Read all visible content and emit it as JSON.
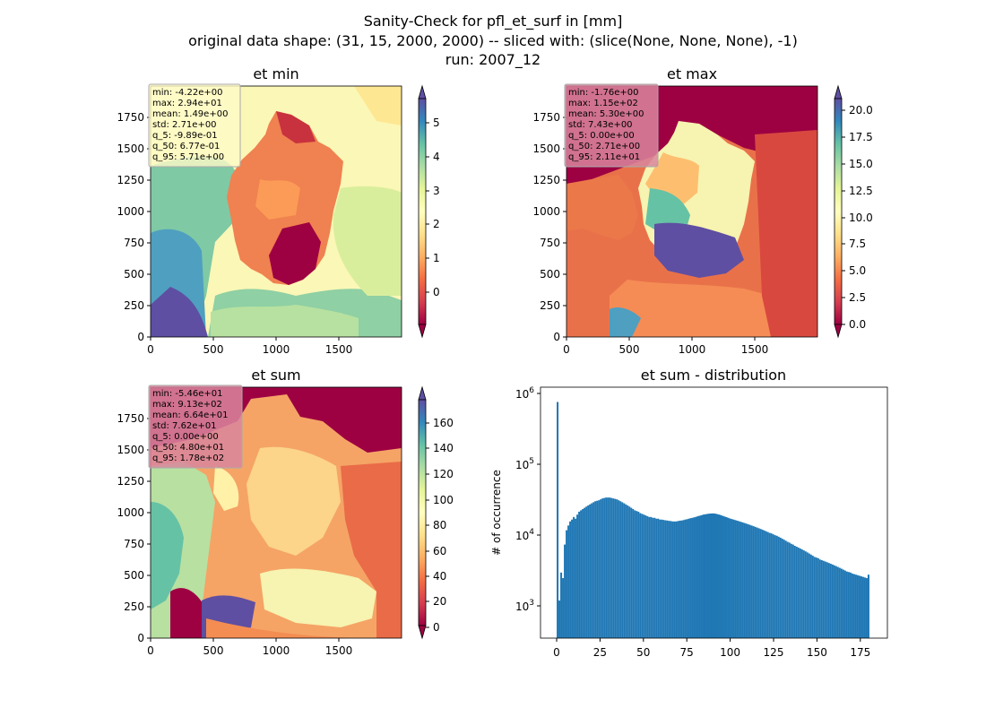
{
  "figure": {
    "title_lines": [
      "Sanity-Check for pfl_et_surf in [mm]",
      "original data shape: (31, 15, 2000, 2000) -- sliced with: (slice(None, None, None), -1)",
      "run: 2007_12"
    ]
  },
  "chart_data": [
    {
      "type": "heatmap",
      "title": "et min",
      "xlim": [
        0,
        2000
      ],
      "ylim": [
        0,
        2000
      ],
      "x_ticks": [
        "0",
        "500",
        "1000",
        "1500"
      ],
      "y_ticks": [
        "0",
        "250",
        "500",
        "750",
        "1000",
        "1250",
        "1500",
        "1750"
      ],
      "colormap": "Spectral",
      "colorbar": {
        "range": [
          -0.99,
          5.71
        ],
        "ticks": [
          "0",
          "1",
          "2",
          "3",
          "4",
          "5"
        ],
        "extend": "both"
      },
      "stats": [
        "min: -4.22e+00",
        "max: 2.94e+01",
        "mean: 1.49e+00",
        "std: 2.71e+00",
        "q_5: -9.89e-01",
        "q_50: 6.77e-01",
        "q_95: 5.71e+00"
      ],
      "stats_box_color": "#fffac8"
    },
    {
      "type": "heatmap",
      "title": "et max",
      "xlim": [
        0,
        2000
      ],
      "ylim": [
        0,
        2000
      ],
      "x_ticks": [
        "0",
        "500",
        "1000",
        "1500"
      ],
      "y_ticks": [
        "0",
        "250",
        "500",
        "750",
        "1000",
        "1250",
        "1500",
        "1750"
      ],
      "colormap": "Spectral",
      "colorbar": {
        "range": [
          0,
          21.1
        ],
        "ticks": [
          "0.0",
          "2.5",
          "5.0",
          "7.5",
          "10.0",
          "12.5",
          "15.0",
          "17.5",
          "20.0"
        ],
        "extend": "both"
      },
      "stats": [
        "min: -1.76e+00",
        "max: 1.15e+02",
        "mean: 5.30e+00",
        "std: 7.43e+00",
        "q_5: 0.00e+00",
        "q_50: 2.71e+00",
        "q_95: 2.11e+01"
      ],
      "stats_box_color": "#d8869e"
    },
    {
      "type": "heatmap",
      "title": "et sum",
      "xlim": [
        0,
        2000
      ],
      "ylim": [
        0,
        2000
      ],
      "x_ticks": [
        "0",
        "500",
        "1000",
        "1500"
      ],
      "y_ticks": [
        "0",
        "250",
        "500",
        "750",
        "1000",
        "1250",
        "1500",
        "1750"
      ],
      "colormap": "Spectral",
      "colorbar": {
        "range": [
          -4,
          178
        ],
        "ticks": [
          "0",
          "20",
          "40",
          "60",
          "80",
          "100",
          "120",
          "140",
          "160"
        ],
        "extend": "both"
      },
      "stats": [
        "min: -5.46e+01",
        "max: 9.13e+02",
        "mean: 6.64e+01",
        "std: 7.62e+01",
        "q_5: 0.00e+00",
        "q_50: 4.80e+01",
        "q_95: 1.78e+02"
      ],
      "stats_box_color": "#d8869e"
    },
    {
      "type": "bar",
      "title": "et sum - distribution",
      "ylabel": "# of occurrence",
      "xlabel": "",
      "xlim": [
        -9,
        184
      ],
      "ylim": [
        350,
        1300000
      ],
      "y_scale": "log",
      "x_ticks": [
        "0",
        "25",
        "50",
        "75",
        "100",
        "125",
        "150",
        "175"
      ],
      "y_ticks": [
        "10^3",
        "10^4",
        "10^5",
        "10^6"
      ],
      "color": "#1f77b4",
      "bin_start": 0,
      "bin_width": 1,
      "values": [
        800000,
        1200,
        3000,
        2500,
        7500,
        12000,
        14000,
        16000,
        17000,
        18500,
        17500,
        20000,
        22000,
        23000,
        24000,
        25000,
        26000,
        27000,
        28000,
        29000,
        30000,
        31000,
        31500,
        32000,
        33000,
        34000,
        34500,
        35000,
        35000,
        35000,
        34500,
        34000,
        33500,
        33000,
        32000,
        31000,
        30000,
        29000,
        28000,
        27000,
        26000,
        25000,
        24000,
        23000,
        22500,
        22000,
        21000,
        20500,
        20000,
        19500,
        19000,
        18500,
        18500,
        18000,
        18000,
        17500,
        17500,
        17000,
        17000,
        16800,
        16600,
        16500,
        16300,
        16200,
        16000,
        16000,
        16000,
        16200,
        16400,
        16500,
        16700,
        17000,
        17200,
        17500,
        17800,
        18000,
        18300,
        18600,
        19000,
        19300,
        19600,
        20000,
        20200,
        20400,
        20600,
        20700,
        20800,
        20800,
        20600,
        20300,
        20000,
        19600,
        19200,
        18800,
        18400,
        18000,
        17600,
        17300,
        17000,
        16700,
        16400,
        16100,
        15800,
        15500,
        15200,
        14900,
        14600,
        14300,
        14000,
        13700,
        13400,
        13100,
        12800,
        12500,
        12200,
        11900,
        11600,
        11300,
        11000,
        10800,
        10500,
        10200,
        10000,
        9700,
        9400,
        9100,
        8800,
        8500,
        8200,
        8000,
        7700,
        7500,
        7200,
        7000,
        6800,
        6600,
        6400,
        6200,
        6000,
        5800,
        5600,
        5400,
        5200,
        5000,
        4900,
        4800,
        4600,
        4500,
        4400,
        4300,
        4200,
        4100,
        4000,
        3900,
        3800,
        3700,
        3600,
        3500,
        3400,
        3300,
        3200,
        3100,
        3050,
        3000,
        2900,
        2850,
        2800,
        2750,
        2700,
        2650,
        2600,
        2550,
        2500,
        2800
      ]
    }
  ]
}
